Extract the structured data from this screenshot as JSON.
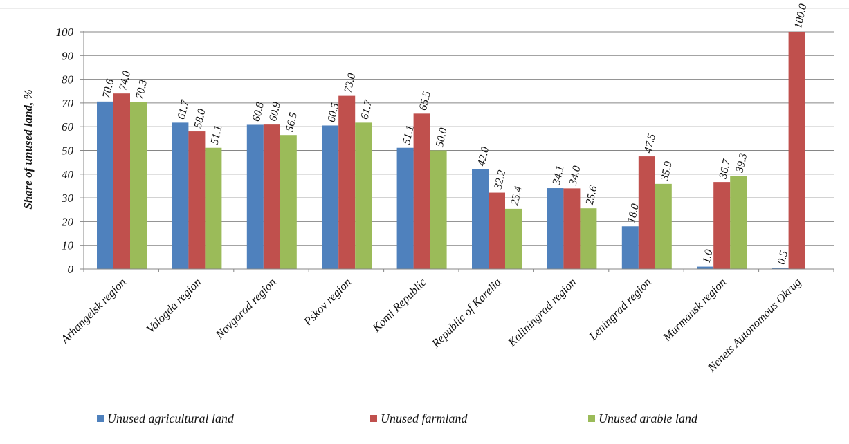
{
  "chart_data": {
    "type": "bar",
    "ylabel": "Share of unused land, %",
    "ylim": [
      0,
      100
    ],
    "yticks": [
      0,
      10,
      20,
      30,
      40,
      50,
      60,
      70,
      80,
      90,
      100
    ],
    "grid": true,
    "legend_position": "bottom",
    "categories": [
      "Arhangelsk region",
      "Vologda region",
      "Novgorod region",
      "Pskov region",
      "Komi Republic",
      "Republic of Karelia",
      "Kaliningrad region",
      "Leningrad region",
      "Murmansk region",
      "Nenets Autonomous Okrug"
    ],
    "series": [
      {
        "name": "Unused agricultural land",
        "color": "#4F81BD",
        "values": [
          70.6,
          61.7,
          60.8,
          60.5,
          51.1,
          42.0,
          34.1,
          18.0,
          1.0,
          0.5
        ],
        "labels": [
          "70.6",
          "61.7",
          "60.8",
          "60.5",
          "51.1",
          "42.0",
          "34.1",
          "18.0",
          "1.0",
          "0.5"
        ]
      },
      {
        "name": "Unused farmland",
        "color": "#C0504D",
        "values": [
          74.0,
          58.0,
          60.9,
          73.0,
          65.5,
          32.2,
          34.0,
          47.5,
          36.7,
          100.0
        ],
        "labels": [
          "74.0",
          "58.0",
          "60.9",
          "73.0",
          "65.5",
          "32.2",
          "34.0",
          "47.5",
          "36.7",
          "100.0"
        ]
      },
      {
        "name": "Unused arable land",
        "color": "#9BBB59",
        "values": [
          70.3,
          51.1,
          56.5,
          61.7,
          50.0,
          25.4,
          25.6,
          35.9,
          39.3,
          null
        ],
        "labels": [
          "70.3",
          "51.1",
          "56.5",
          "61.7",
          "50.0",
          "25.4",
          "25.6",
          "35.9",
          "39.3",
          null
        ]
      }
    ]
  }
}
